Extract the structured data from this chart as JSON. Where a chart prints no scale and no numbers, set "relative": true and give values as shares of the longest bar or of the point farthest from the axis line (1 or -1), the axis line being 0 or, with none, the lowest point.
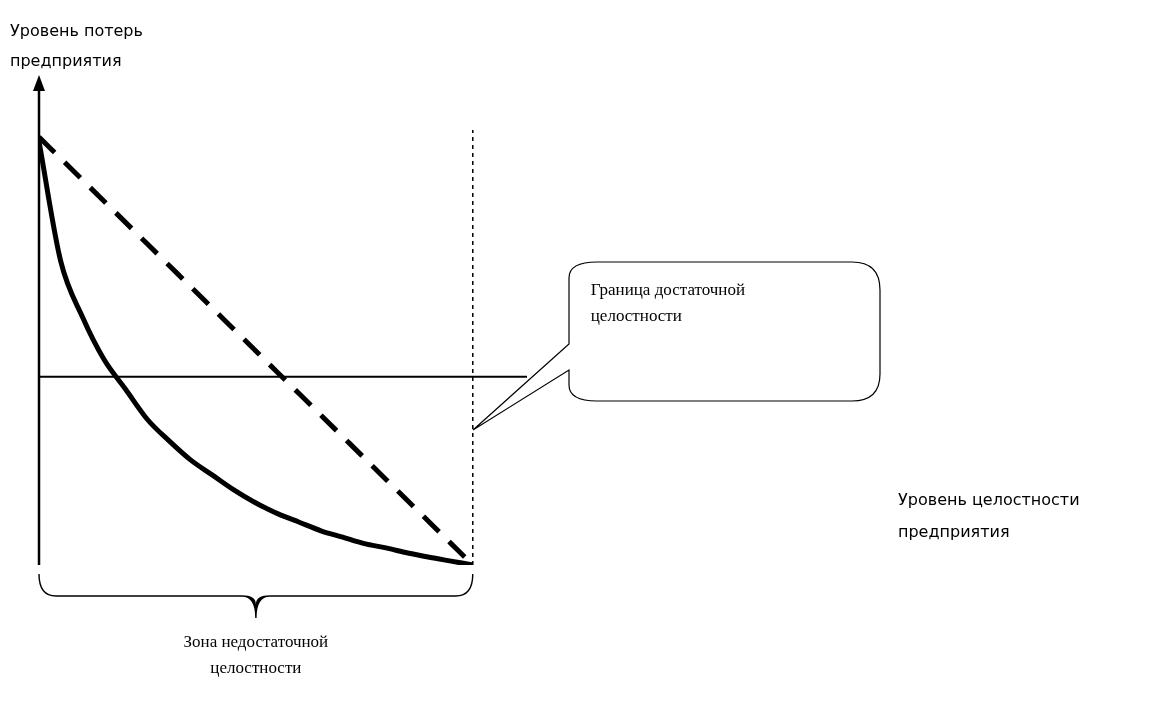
{
  "chart_data": {
    "type": "line",
    "relative": true,
    "ylabel": "Уровень потерь предприятия",
    "categories": [
      null,
      null,
      null,
      null,
      null,
      null,
      null,
      null,
      null,
      null,
      null,
      null,
      null,
      null,
      null,
      null,
      null,
      null,
      null,
      null,
      null
    ],
    "series": [
      {
        "color": "#000000",
        "line_style": "solid",
        "values": [
          0.99,
          0.71,
          0.58,
          0.48,
          0.41,
          0.34,
          0.29,
          0.245,
          0.21,
          0.175,
          0.145,
          0.12,
          0.1,
          0.08,
          0.065,
          0.05,
          0.04,
          0.028,
          0.018,
          0.009,
          0
        ]
      },
      {
        "color": "#000000",
        "line_style": "dashed",
        "values": [
          1,
          0.95,
          0.9,
          0.85,
          0.8,
          0.75,
          0.7,
          0.65,
          0.6,
          0.55,
          0.5,
          0.45,
          0.4,
          0.35,
          0.3,
          0.25,
          0.2,
          0.15,
          0.1,
          0.05,
          0
        ]
      }
    ],
    "ref_lines": [
      {
        "axis": "y",
        "value": 0.44,
        "color": "#000000",
        "line_style": "solid"
      }
    ],
    "annotations": [
      "Зона недостаточной целостности",
      "Граница достаточной целостности",
      "Уровень целостности предприятия"
    ],
    "grid": false,
    "legend": false,
    "marker": "none"
  }
}
